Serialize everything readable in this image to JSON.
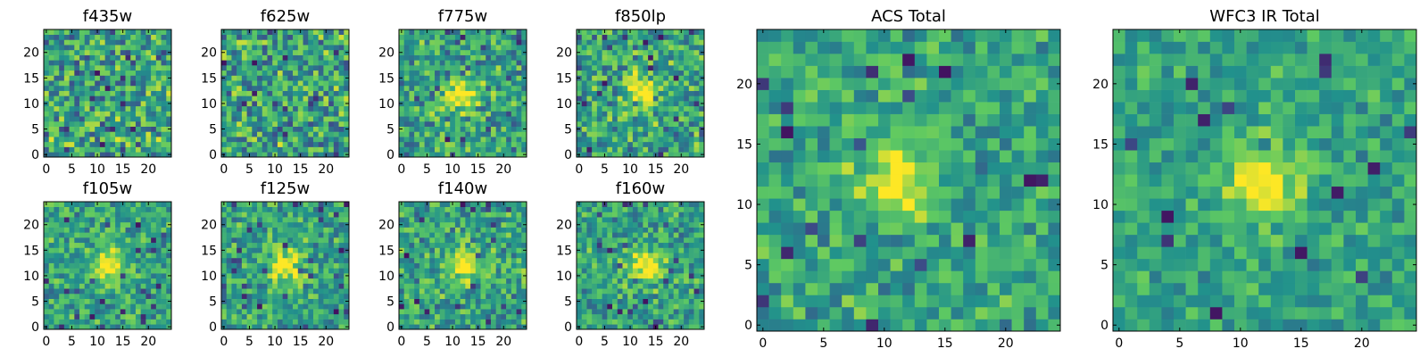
{
  "figure": {
    "colormap": "viridis",
    "colormap_stops": [
      "#440154",
      "#3b528b",
      "#21918c",
      "#5ec962",
      "#fde725"
    ]
  },
  "chart_data": [
    {
      "type": "heatmap",
      "title": "f435w",
      "grid_size": 25,
      "xlim": [
        0,
        24
      ],
      "ylim": [
        0,
        24
      ],
      "xticks": [
        0,
        5,
        10,
        15,
        20
      ],
      "yticks": [
        0,
        5,
        10,
        15,
        20
      ],
      "xlabel": "",
      "ylabel": "",
      "source_peak": null,
      "noise": 0.3,
      "seed": 11
    },
    {
      "type": "heatmap",
      "title": "f625w",
      "grid_size": 25,
      "xlim": [
        0,
        24
      ],
      "ylim": [
        0,
        24
      ],
      "xticks": [
        0,
        5,
        10,
        15,
        20
      ],
      "yticks": [
        0,
        5,
        10,
        15,
        20
      ],
      "xlabel": "",
      "ylabel": "",
      "source_peak": null,
      "noise": 0.3,
      "seed": 23
    },
    {
      "type": "heatmap",
      "title": "f775w",
      "grid_size": 25,
      "xlim": [
        0,
        24
      ],
      "ylim": [
        0,
        24
      ],
      "xticks": [
        0,
        5,
        10,
        15,
        20
      ],
      "yticks": [
        0,
        5,
        10,
        15,
        20
      ],
      "xlabel": "",
      "ylabel": "",
      "source_peak": [
        12,
        12
      ],
      "noise": 0.26,
      "seed": 37
    },
    {
      "type": "heatmap",
      "title": "f850lp",
      "grid_size": 25,
      "xlim": [
        0,
        24
      ],
      "ylim": [
        0,
        24
      ],
      "xticks": [
        0,
        5,
        10,
        15,
        20
      ],
      "yticks": [
        0,
        5,
        10,
        15,
        20
      ],
      "xlabel": "",
      "ylabel": "",
      "source_peak": [
        12,
        12
      ],
      "noise": 0.26,
      "seed": 41
    },
    {
      "type": "heatmap",
      "title": "f105w",
      "grid_size": 25,
      "xlim": [
        0,
        24
      ],
      "ylim": [
        0,
        24
      ],
      "xticks": [
        0,
        5,
        10,
        15,
        20
      ],
      "yticks": [
        0,
        5,
        10,
        15,
        20
      ],
      "xlabel": "",
      "ylabel": "",
      "source_peak": [
        12,
        12
      ],
      "noise": 0.22,
      "seed": 53
    },
    {
      "type": "heatmap",
      "title": "f125w",
      "grid_size": 25,
      "xlim": [
        0,
        24
      ],
      "ylim": [
        0,
        24
      ],
      "xticks": [
        0,
        5,
        10,
        15,
        20
      ],
      "yticks": [
        0,
        5,
        10,
        15,
        20
      ],
      "xlabel": "",
      "ylabel": "",
      "source_peak": [
        12,
        12
      ],
      "noise": 0.22,
      "seed": 67
    },
    {
      "type": "heatmap",
      "title": "f140w",
      "grid_size": 25,
      "xlim": [
        0,
        24
      ],
      "ylim": [
        0,
        24
      ],
      "xticks": [
        0,
        5,
        10,
        15,
        20
      ],
      "yticks": [
        0,
        5,
        10,
        15,
        20
      ],
      "xlabel": "",
      "ylabel": "",
      "source_peak": [
        12,
        12
      ],
      "noise": 0.24,
      "seed": 79
    },
    {
      "type": "heatmap",
      "title": "f160w",
      "grid_size": 25,
      "xlim": [
        0,
        24
      ],
      "ylim": [
        0,
        24
      ],
      "xticks": [
        0,
        5,
        10,
        15,
        20
      ],
      "yticks": [
        0,
        5,
        10,
        15,
        20
      ],
      "xlabel": "",
      "ylabel": "",
      "source_peak": [
        13,
        12
      ],
      "noise": 0.22,
      "seed": 83
    },
    {
      "type": "heatmap",
      "title": "ACS Total",
      "grid_size": 25,
      "xlim": [
        0,
        24
      ],
      "ylim": [
        0,
        24
      ],
      "xticks": [
        0,
        5,
        10,
        15,
        20
      ],
      "yticks": [
        0,
        5,
        10,
        15,
        20
      ],
      "xlabel": "",
      "ylabel": "",
      "source_peak": [
        11,
        12
      ],
      "noise": 0.2,
      "seed": 97
    },
    {
      "type": "heatmap",
      "title": "WFC3 IR Total",
      "grid_size": 25,
      "xlim": [
        0,
        24
      ],
      "ylim": [
        0,
        24
      ],
      "xticks": [
        0,
        5,
        10,
        15,
        20
      ],
      "yticks": [
        0,
        5,
        10,
        15,
        20
      ],
      "xlabel": "",
      "ylabel": "",
      "source_peak": [
        12,
        12
      ],
      "noise": 0.16,
      "seed": 101
    }
  ]
}
